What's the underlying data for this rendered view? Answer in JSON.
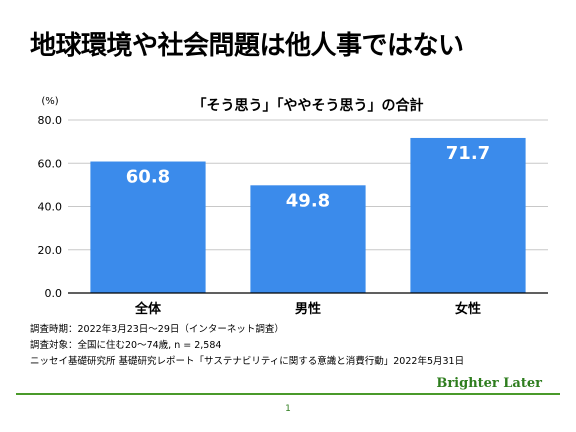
{
  "slide": {
    "title": "地球環境や社会問題は他人事ではない",
    "notes": [
      "調査時期：2022年3月23日〜29日（インターネット調査）",
      "調査対象：全国に住む20〜74歳, n = 2,584",
      "ニッセイ基礎研究所 基礎研究レポート「サステナビリティに関する意識と消費行動」2022年5月31日"
    ],
    "brand": "Brighter Later",
    "page_number": "1"
  },
  "colors": {
    "bar": "#3b8beb",
    "grid": "#c8c8c8",
    "axis": "#000000",
    "brand": "#2e7d1e"
  },
  "chart_data": {
    "type": "bar",
    "title": "「そう思う」「ややそう思う」の合計",
    "ylabel": "(%)",
    "categories": [
      "全体",
      "男性",
      "女性"
    ],
    "values": [
      60.8,
      49.8,
      71.7
    ],
    "value_labels": [
      "60.8",
      "49.8",
      "71.7"
    ],
    "ylim": [
      0,
      80
    ],
    "yticks": [
      0,
      20,
      40,
      60,
      80
    ],
    "ytick_labels": [
      "0.0",
      "20.0",
      "40.0",
      "60.0",
      "80.0"
    ],
    "grid": true,
    "legend": "none"
  }
}
